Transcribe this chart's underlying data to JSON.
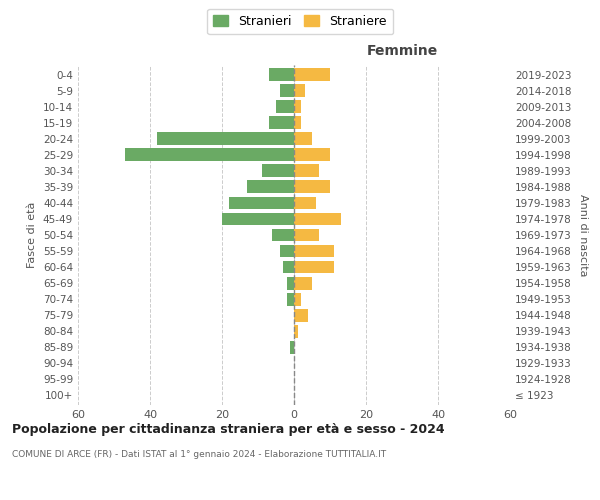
{
  "age_groups": [
    "100+",
    "95-99",
    "90-94",
    "85-89",
    "80-84",
    "75-79",
    "70-74",
    "65-69",
    "60-64",
    "55-59",
    "50-54",
    "45-49",
    "40-44",
    "35-39",
    "30-34",
    "25-29",
    "20-24",
    "15-19",
    "10-14",
    "5-9",
    "0-4"
  ],
  "birth_years": [
    "≤ 1923",
    "1924-1928",
    "1929-1933",
    "1934-1938",
    "1939-1943",
    "1944-1948",
    "1949-1953",
    "1954-1958",
    "1959-1963",
    "1964-1968",
    "1969-1973",
    "1974-1978",
    "1979-1983",
    "1984-1988",
    "1989-1993",
    "1994-1998",
    "1999-2003",
    "2004-2008",
    "2009-2013",
    "2014-2018",
    "2019-2023"
  ],
  "males": [
    0,
    0,
    0,
    1,
    0,
    0,
    2,
    2,
    3,
    4,
    6,
    20,
    18,
    13,
    9,
    47,
    38,
    7,
    5,
    4,
    7
  ],
  "females": [
    0,
    0,
    0,
    0,
    1,
    4,
    2,
    5,
    11,
    11,
    7,
    13,
    6,
    10,
    7,
    10,
    5,
    2,
    2,
    3,
    10
  ],
  "male_color": "#6aaa64",
  "female_color": "#f5b942",
  "title": "Popolazione per cittadinanza straniera per età e sesso - 2024",
  "subtitle": "COMUNE DI ARCE (FR) - Dati ISTAT al 1° gennaio 2024 - Elaborazione TUTTITALIA.IT",
  "xlabel_right": "Femmine",
  "ylabel_left": "Fasce di età",
  "ylabel_right": "Anni di nascita",
  "legend_male": "Stranieri",
  "legend_female": "Straniere",
  "xlim": 60,
  "background_color": "#ffffff",
  "grid_color": "#cccccc",
  "bar_height": 0.8
}
